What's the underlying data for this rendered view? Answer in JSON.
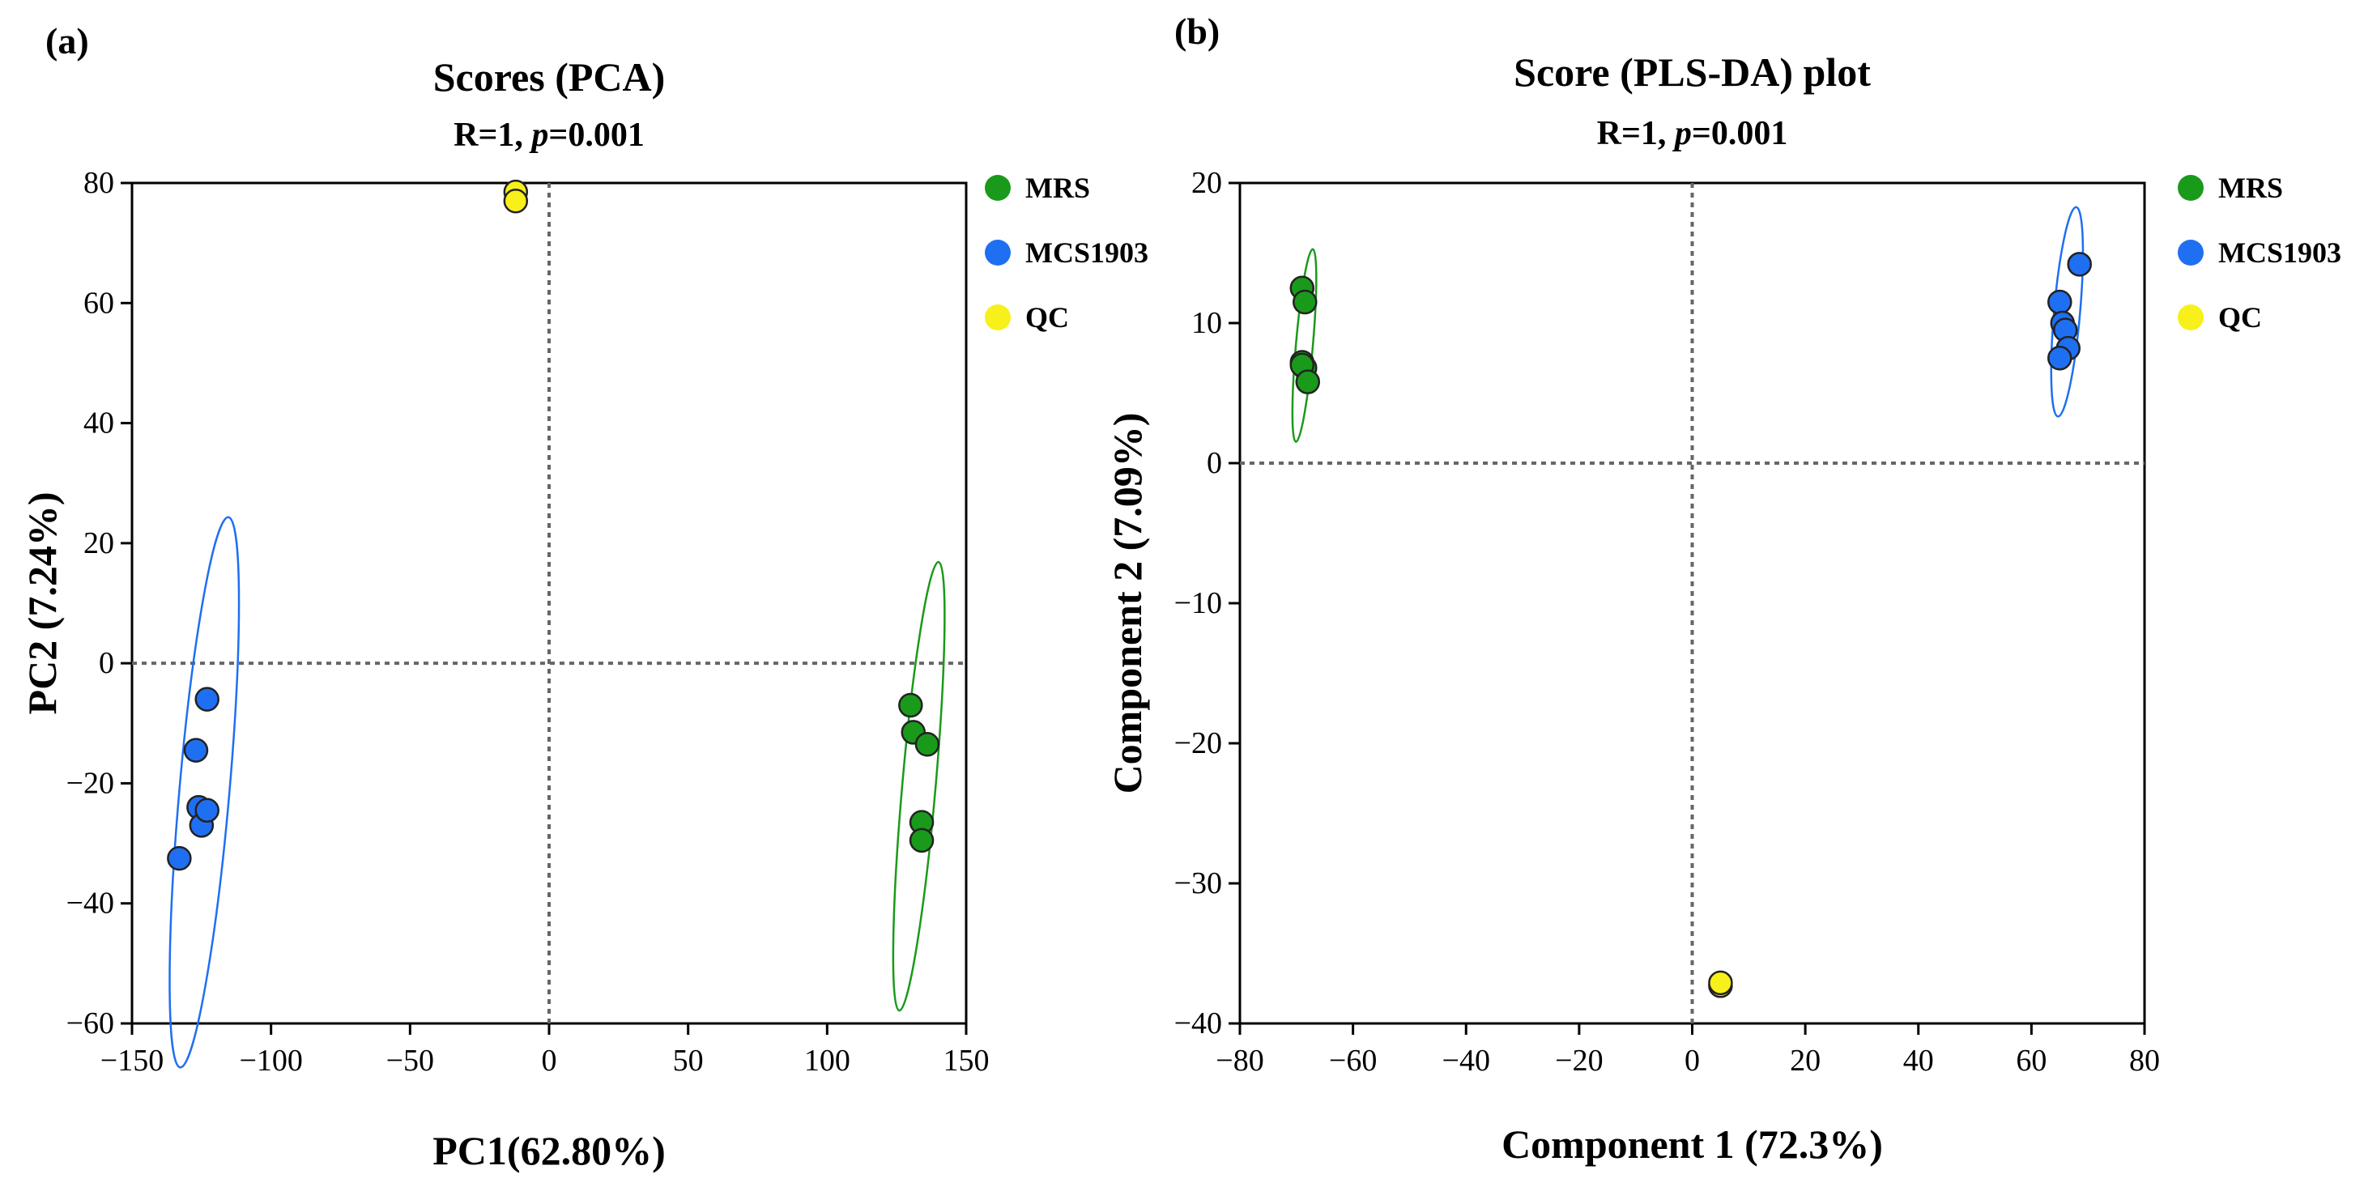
{
  "chart_data": [
    {
      "panel_label": "(a)",
      "type": "scatter",
      "title": "Scores (PCA)",
      "subtitle_prefix": "R=1, ",
      "subtitle_italic": "p",
      "subtitle_suffix": "=0.001",
      "xlabel": "PC1(62.80%)",
      "ylabel": "PC2 (7.24%)",
      "xlim": [
        -150,
        150
      ],
      "ylim": [
        -60,
        80
      ],
      "xticks": [
        -150,
        -100,
        -50,
        0,
        50,
        100,
        150
      ],
      "yticks": [
        -60,
        -40,
        -20,
        0,
        20,
        40,
        60,
        80
      ],
      "xtick_labels": [
        "−150",
        "−100",
        "−50",
        "0",
        "50",
        "100",
        "150"
      ],
      "ytick_labels": [
        "−60",
        "−40",
        "−20",
        "0",
        "20",
        "40",
        "60",
        "80"
      ],
      "grid": false,
      "reference_lines": {
        "x": 0,
        "y": 0,
        "style": "dotted"
      },
      "legend_position": "outside-right",
      "series": [
        {
          "name": "MRS",
          "color": "#1a9a1a",
          "points": [
            [
              130,
              -7
            ],
            [
              131,
              -11.5
            ],
            [
              136,
              -13.5
            ],
            [
              134,
              -26.5
            ],
            [
              134,
              -29.5
            ]
          ],
          "ellipse": {
            "cx": 133,
            "cy": -20.5,
            "rx": 6,
            "ry": 37.5
          }
        },
        {
          "name": "MCS1903",
          "color": "#1f6ff2",
          "points": [
            [
              -127,
              -14.5
            ],
            [
              -123,
              -6
            ],
            [
              -126,
              -24
            ],
            [
              -125,
              -27
            ],
            [
              -123,
              -24.5
            ],
            [
              -133,
              -32.5
            ]
          ],
          "ellipse": {
            "cx": -124,
            "cy": -21.5,
            "rx": 9,
            "ry": 46
          }
        },
        {
          "name": "QC",
          "color": "#f7f01a",
          "points": [
            [
              -12,
              78.5
            ],
            [
              -12,
              77
            ]
          ],
          "ellipse": null
        }
      ]
    },
    {
      "panel_label": "(b)",
      "type": "scatter",
      "title": "Score (PLS-DA) plot",
      "subtitle_prefix": "R=1, ",
      "subtitle_italic": "p",
      "subtitle_suffix": "=0.001",
      "xlabel": "Component 1 (72.3%)",
      "ylabel": "Component 2 (7.09%)",
      "xlim": [
        -80,
        80
      ],
      "ylim": [
        -40,
        20
      ],
      "xticks": [
        -80,
        -60,
        -40,
        -20,
        0,
        20,
        40,
        60,
        80
      ],
      "yticks": [
        -40,
        -30,
        -20,
        -10,
        0,
        10,
        20
      ],
      "xtick_labels": [
        "−80",
        "−60",
        "−40",
        "−20",
        "0",
        "20",
        "40",
        "60",
        "80"
      ],
      "ytick_labels": [
        "−40",
        "−30",
        "−20",
        "−10",
        "0",
        "10",
        "20"
      ],
      "grid": false,
      "reference_lines": {
        "x": 0,
        "y": 0,
        "style": "dotted"
      },
      "legend_position": "outside-right",
      "series": [
        {
          "name": "MRS",
          "color": "#1a9a1a",
          "points": [
            [
              -69,
              12.5
            ],
            [
              -68.5,
              11.5
            ],
            [
              -69,
              7.2
            ],
            [
              -68.5,
              6.8
            ],
            [
              -69,
              7
            ],
            [
              -68,
              5.8
            ]
          ],
          "ellipse": {
            "cx": -68.6,
            "cy": 8.4,
            "rx": 1.5,
            "ry": 6.9
          }
        },
        {
          "name": "MCS1903",
          "color": "#1f6ff2",
          "points": [
            [
              65,
              11.5
            ],
            [
              65.5,
              10
            ],
            [
              66,
              9.5
            ],
            [
              66.5,
              8.2
            ],
            [
              65,
              7.5
            ],
            [
              68.5,
              14.2
            ]
          ],
          "ellipse": {
            "cx": 66.3,
            "cy": 10.8,
            "rx": 2.3,
            "ry": 7.5
          }
        },
        {
          "name": "QC",
          "color": "#f7f01a",
          "points": [
            [
              5,
              -37.3
            ],
            [
              5,
              -37.1
            ]
          ],
          "ellipse": null
        }
      ]
    }
  ]
}
